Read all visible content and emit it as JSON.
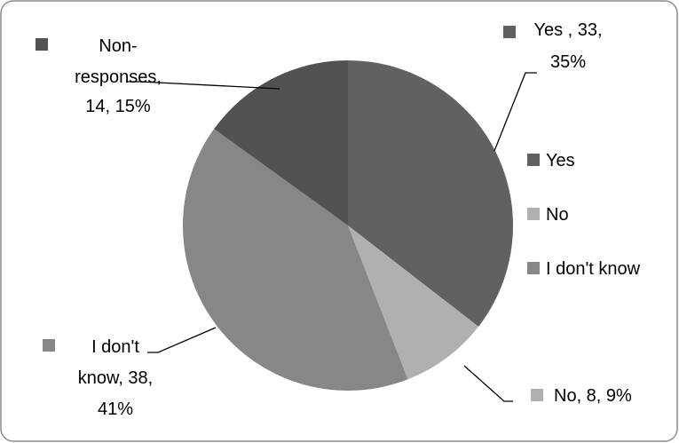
{
  "chart_data": {
    "type": "pie",
    "title": "",
    "slices": [
      {
        "label": "Yes",
        "value": 33,
        "percent": 35,
        "color": "#616161",
        "data_label_lines": [
          "Yes , 33,",
          "35%"
        ]
      },
      {
        "label": "No",
        "value": 8,
        "percent": 9,
        "color": "#b0b0b0",
        "data_label_lines": [
          "No, 8, 9%"
        ]
      },
      {
        "label": "I don't know",
        "value": 38,
        "percent": 41,
        "color": "#878787",
        "data_label_lines": [
          "I don't",
          "know, 38,",
          "41%"
        ]
      },
      {
        "label": "Non-responses",
        "value": 14,
        "percent": 15,
        "color": "#525252",
        "data_label_lines": [
          "Non-",
          "responses,",
          "14, 15%"
        ]
      }
    ],
    "legend": {
      "placement": "right",
      "entries": [
        "Yes",
        "No",
        "I don't know"
      ]
    }
  }
}
